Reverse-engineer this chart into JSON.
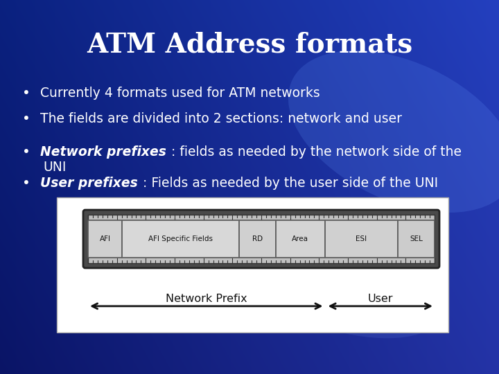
{
  "title": "ATM Address formats",
  "title_fontsize": 28,
  "title_color": "white",
  "bullet_lines": [
    {
      "plain": "Currently 4 formats used for ATM networks",
      "italic": "",
      "wrap": ""
    },
    {
      "plain": "The fields are divided into 2 sections: network and user",
      "italic": "",
      "wrap": ""
    },
    {
      "plain": " : fields as needed by the network side of the",
      "italic": "Network prefixes",
      "wrap": "UNI"
    },
    {
      "plain": " : Fields as needed by the user side of the UNI",
      "italic": "User prefixes",
      "wrap": ""
    }
  ],
  "bullet_fontsize": 13.5,
  "diagram_fields": [
    "AFI",
    "AFI Specific Fields",
    "RD",
    "Area",
    "ESI",
    "SEL"
  ],
  "diagram_widths": [
    0.7,
    2.4,
    0.75,
    1.0,
    1.5,
    0.75
  ],
  "arrow_label1": "Network Prefix",
  "arrow_label2": "User"
}
